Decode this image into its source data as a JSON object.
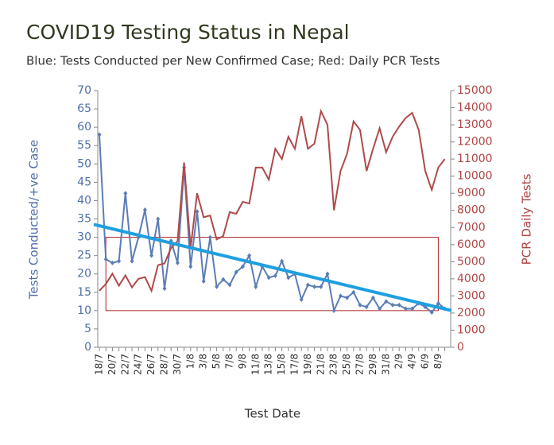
{
  "chart_data": {
    "type": "line",
    "title": "COVID19 Testing Status in Nepal",
    "subtitle": "Blue: Tests Conducted per New Confirmed Case; Red: Daily PCR Tests",
    "x_label": "Test Date",
    "y_label": "Tests Conducted/+ve Case",
    "y2_label": "PCR Daily Tests",
    "categories": [
      "18/7",
      null,
      "20/7",
      null,
      "22/7",
      null,
      "24/7",
      null,
      "26/7",
      null,
      "28/7",
      null,
      "30/7",
      null,
      "1/8",
      null,
      "3/8",
      null,
      "5/8",
      null,
      "7/8",
      null,
      "9/8",
      null,
      "11/8",
      null,
      "13/8",
      null,
      "15/8",
      null,
      "17/8",
      null,
      "19/8",
      null,
      "21/8",
      null,
      "23/8",
      null,
      "25/8",
      null,
      "27/8",
      null,
      "29/8",
      null,
      "31/8",
      null,
      "2/9",
      null,
      "4/9",
      null,
      "6/9",
      null,
      "8/9",
      null
    ],
    "series": [
      {
        "name": "Tests Conducted per New Confirmed Case",
        "color": "#5b7db5",
        "values": [
          58,
          24,
          23,
          23.5,
          42,
          23.5,
          30,
          37.5,
          25,
          35,
          16,
          29,
          23,
          49,
          22,
          37,
          18,
          30,
          16.5,
          18.5,
          17,
          20.5,
          22,
          25,
          16.5,
          22,
          19,
          19.5,
          23.5,
          19,
          20,
          13,
          17,
          16.5,
          16.5,
          20,
          10,
          14,
          13.5,
          15,
          11.5,
          11,
          13.5,
          10.5,
          12.5,
          11.5,
          11.5,
          10.5,
          10.5,
          12,
          11,
          9.5,
          12,
          10.5
        ]
      },
      {
        "name": "Daily PCR Tests",
        "color": "#b04a4a",
        "axis": "y2",
        "values": [
          3300,
          3700,
          4300,
          3600,
          4200,
          3500,
          4000,
          4100,
          3300,
          4800,
          4900,
          5800,
          6200,
          10800,
          5800,
          9000,
          7600,
          7700,
          6300,
          6500,
          7900,
          7800,
          8500,
          8400,
          10500,
          10500,
          9800,
          11600,
          11000,
          12300,
          11600,
          13500,
          11600,
          11900,
          13800,
          13000,
          8000,
          10300,
          11300,
          13200,
          12700,
          10300,
          11600,
          12800,
          11400,
          12300,
          12900,
          13400,
          13700,
          12700,
          10300,
          9200,
          10500,
          11000
        ]
      }
    ],
    "trendline": {
      "color": "#1e9fe0",
      "values": [
        33.5,
        10
      ]
    },
    "box": {
      "color": "#b02020",
      "ylim": [
        10,
        30
      ]
    },
    "ylim": [
      0,
      70
    ],
    "yticks": [
      0,
      5,
      10,
      15,
      20,
      25,
      30,
      35,
      40,
      45,
      50,
      55,
      60,
      65,
      70
    ],
    "y2lim": [
      0,
      15000
    ],
    "y2ticks": [
      0,
      1000,
      2000,
      3000,
      4000,
      5000,
      6000,
      7000,
      8000,
      9000,
      10000,
      11000,
      12000,
      13000,
      14000,
      15000
    ]
  }
}
